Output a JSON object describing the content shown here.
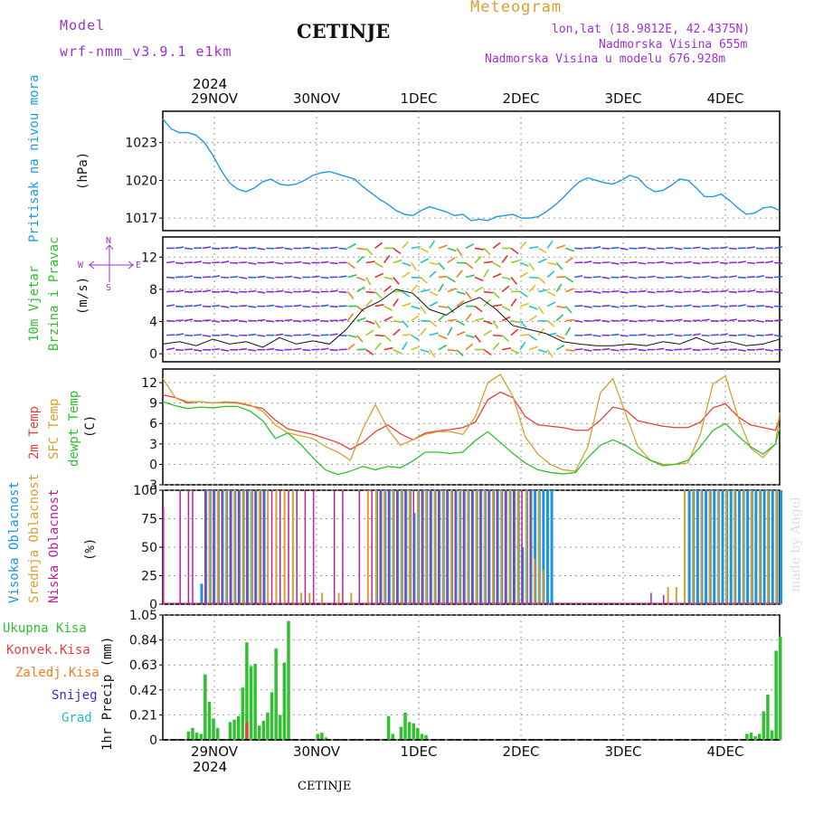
{
  "header": {
    "model_label": "Model",
    "model_name": "wrf-nmm_v3.9.1 e1km",
    "title": "CETINJE",
    "meteogram": "Meteogram",
    "lonlat": "lon,lat (18.9812E, 42.4375N)",
    "elev": "Nadmorska Visina 655m",
    "elev_model": "Nadmorska Visina u modelu 676.928m",
    "footer": "CETINJE",
    "watermark": "made by Angel",
    "year_top": "2024",
    "year_bottom": "2024"
  },
  "colors": {
    "pressure": "#1e9be0",
    "temp2m": "#e8403a",
    "sfc": "#d9a030",
    "dew": "#2ec02e",
    "high": "#1a95e0",
    "mid": "#d9a030",
    "low": "#c0209a",
    "precip": "#30c030",
    "convek": "#e84040",
    "zaledj": "#f08020",
    "snijeg": "#3030d0",
    "grad": "#20c0c0",
    "windlabel": "#a030d0"
  },
  "dates": [
    "29NOV",
    "30NOV",
    "1DEC",
    "2DEC",
    "3DEC",
    "4DEC"
  ],
  "panels": {
    "pressure": {
      "label": "Pritisak na nivou mora",
      "unit": "(hPa)",
      "ticks": [
        "1023",
        "1020",
        "1017"
      ]
    },
    "wind": {
      "label1": "10m Vjetar",
      "label2": "Brzina i Pravac",
      "unit": "(m/s)",
      "ticks": [
        "12",
        "8",
        "4",
        "0"
      ],
      "compass_n": "N",
      "compass_w": "W",
      "compass_e": "E",
      "compass_s": "S"
    },
    "temp": {
      "label_2m": "2m Temp",
      "label_sfc": "SFC Temp",
      "label_dew": "dewpt Temp",
      "unit": "(C)",
      "ticks": [
        "12",
        "9",
        "6",
        "3",
        "0",
        "-3"
      ]
    },
    "cloud": {
      "label_high": "Visoka Oblacnost",
      "label_mid": "Srednja Oblacnost",
      "label_low": "Niska Oblacnost",
      "unit": "(%)",
      "ticks": [
        "100",
        "75",
        "50",
        "25",
        "0"
      ]
    },
    "precip": {
      "ukupna": "Ukupna Kisa",
      "konvek": "Konvek.Kisa",
      "zaledj": "Zaledj.Kisa",
      "snijeg": "Snijeg",
      "grad": "Grad",
      "unit": "1hr Precip (mm)",
      "ticks": [
        "1.05",
        "0.84",
        "0.63",
        "0.42",
        "0.21",
        "0"
      ]
    }
  },
  "chart_data": [
    {
      "type": "line",
      "title": "Pritisak na nivou mora",
      "ylabel": "(hPa)",
      "x_unit": "hours from 2024-11-28 12:00 UTC",
      "ylim": [
        1016,
        1025.5
      ],
      "x": [
        0,
        2,
        4,
        6,
        8,
        10,
        12,
        14,
        16,
        18,
        20,
        22,
        24,
        26,
        28,
        30,
        32,
        34,
        36,
        38,
        40,
        42,
        44,
        46,
        48,
        50,
        52,
        54,
        56,
        58,
        60,
        62,
        64,
        66,
        68,
        70,
        72,
        74,
        76,
        78,
        80,
        82,
        84,
        86,
        88,
        90,
        92,
        94,
        96,
        98,
        100,
        102,
        104,
        106,
        108,
        110,
        112,
        114,
        116,
        118,
        120,
        122,
        124,
        126,
        128,
        130,
        132,
        134,
        136,
        138,
        140,
        142,
        144,
        146,
        148
      ],
      "series": [
        {
          "name": "Pritisak na nivou mora",
          "values": [
            1024.9,
            1024.1,
            1023.8,
            1023.8,
            1023.6,
            1023.0,
            1022.0,
            1020.8,
            1019.8,
            1019.3,
            1019.1,
            1019.4,
            1019.9,
            1020.1,
            1019.7,
            1019.6,
            1019.7,
            1020.0,
            1020.4,
            1020.6,
            1020.7,
            1020.5,
            1020.3,
            1020.1,
            1019.5,
            1019.0,
            1018.5,
            1018.1,
            1017.6,
            1017.3,
            1017.2,
            1017.6,
            1017.9,
            1017.7,
            1017.5,
            1017.2,
            1017.3,
            1016.8,
            1016.9,
            1016.8,
            1017.1,
            1017.2,
            1017.3,
            1017.0,
            1017.0,
            1017.1,
            1017.5,
            1018.0,
            1018.6,
            1019.3,
            1019.9,
            1020.2,
            1020.0,
            1019.8,
            1019.7,
            1020.0,
            1020.4,
            1020.2,
            1019.5,
            1019.1,
            1019.2,
            1019.6,
            1020.1,
            1020.0,
            1019.4,
            1018.7,
            1018.7,
            1018.9,
            1018.4,
            1017.8,
            1017.3,
            1017.4,
            1017.8,
            1017.9,
            1017.6
          ]
        }
      ]
    },
    {
      "type": "line",
      "title": "10m Vjetar Brzina i Pravac",
      "ylabel": "(m/s)",
      "x_unit": "hours from 2024-11-28 12:00 UTC",
      "ylim": [
        -1,
        14.5
      ],
      "x": [
        0,
        4,
        8,
        12,
        16,
        20,
        24,
        28,
        32,
        36,
        40,
        44,
        48,
        52,
        56,
        60,
        64,
        68,
        72,
        76,
        80,
        84,
        88,
        92,
        96,
        100,
        104,
        108,
        112,
        116,
        120,
        124,
        128,
        132,
        136,
        140,
        144,
        148
      ],
      "series": [
        {
          "name": "10m Vjetar",
          "values": [
            1.2,
            1.5,
            1.0,
            1.8,
            1.2,
            1.5,
            0.8,
            2.0,
            1.2,
            1.6,
            1.2,
            3.0,
            5.5,
            6.5,
            8.0,
            7.5,
            5.5,
            4.8,
            6.2,
            7.0,
            5.5,
            3.5,
            3.0,
            2.5,
            1.5,
            1.2,
            1.0,
            1.0,
            1.2,
            1.0,
            1.5,
            1.2,
            2.0,
            1.2,
            1.5,
            1.0,
            1.2,
            1.8
          ]
        }
      ]
    },
    {
      "type": "line",
      "title": "2m Temp / SFC Temp / dewpt Temp",
      "ylabel": "(C)",
      "x_unit": "hours from 2024-11-28 12:00 UTC",
      "ylim": [
        -3,
        14
      ],
      "x": [
        0,
        3,
        6,
        9,
        12,
        15,
        18,
        21,
        24,
        27,
        30,
        33,
        36,
        39,
        42,
        45,
        48,
        51,
        54,
        57,
        60,
        63,
        66,
        69,
        72,
        75,
        78,
        81,
        84,
        87,
        90,
        93,
        96,
        99,
        102,
        105,
        108,
        111,
        114,
        117,
        120,
        123,
        126,
        129,
        132,
        135,
        138,
        141,
        144,
        147,
        148
      ],
      "series": [
        {
          "name": "2m Temp",
          "values": [
            10.2,
            9.8,
            9.0,
            9.2,
            9.0,
            9.1,
            9.0,
            8.6,
            8.2,
            6.5,
            5.2,
            4.8,
            4.4,
            3.8,
            3.2,
            2.2,
            3.2,
            4.8,
            5.8,
            4.5,
            3.6,
            4.6,
            4.9,
            5.1,
            5.4,
            6.2,
            9.5,
            10.6,
            9.8,
            7.0,
            5.8,
            5.6,
            5.4,
            5.0,
            5.0,
            6.5,
            8.4,
            8.0,
            6.4,
            6.0,
            5.6,
            5.4,
            5.4,
            6.2,
            8.3,
            8.9,
            7.0,
            5.8,
            5.4,
            5.0,
            6.8
          ]
        },
        {
          "name": "SFC Temp",
          "values": [
            12.6,
            9.8,
            9.2,
            9.2,
            9.0,
            9.2,
            9.1,
            8.7,
            7.8,
            5.8,
            4.6,
            4.2,
            3.8,
            2.6,
            1.8,
            0.6,
            5.2,
            8.8,
            5.2,
            2.8,
            3.6,
            4.4,
            4.8,
            4.8,
            4.4,
            7.0,
            12.0,
            13.2,
            10.0,
            4.0,
            1.5,
            0.0,
            -0.8,
            -1.0,
            2.6,
            10.5,
            12.6,
            7.5,
            2.6,
            0.6,
            0.0,
            0.0,
            0.2,
            4.5,
            11.8,
            13.0,
            7.0,
            2.4,
            1.0,
            3.0,
            7.6
          ]
        },
        {
          "name": "dewpt Temp",
          "values": [
            9.2,
            8.6,
            8.2,
            8.4,
            8.3,
            8.5,
            8.5,
            7.8,
            6.4,
            3.8,
            4.6,
            3.0,
            1.0,
            -0.8,
            -1.5,
            -1.0,
            -0.3,
            -0.8,
            -0.3,
            -0.5,
            0.5,
            1.8,
            1.8,
            1.6,
            1.8,
            3.5,
            4.8,
            3.2,
            1.6,
            0.2,
            -0.8,
            -1.2,
            -1.4,
            -1.2,
            1.0,
            2.8,
            3.6,
            2.8,
            1.6,
            0.6,
            -0.2,
            0.0,
            0.6,
            2.6,
            5.0,
            6.0,
            4.2,
            2.6,
            1.5,
            3.0,
            5.4
          ]
        }
      ]
    },
    {
      "type": "bar",
      "title": "Visoka / Srednja / Niska Oblacnost",
      "ylabel": "(%)",
      "x_unit": "hours from 2024-11-28 12:00 UTC",
      "ylim": [
        0,
        100
      ],
      "series": [
        {
          "name": "Visoka Oblacnost",
          "x": [
            9,
            10,
            11,
            12,
            13,
            14,
            15,
            16,
            17,
            18,
            19,
            20,
            21,
            22,
            23,
            24,
            51,
            52,
            53,
            54,
            55,
            56,
            57,
            58,
            59,
            60,
            61,
            62,
            63,
            64,
            65,
            66,
            67,
            68,
            69,
            70,
            71,
            72,
            73,
            74,
            75,
            76,
            77,
            78,
            79,
            80,
            81,
            82,
            83,
            84,
            85,
            86,
            87,
            88,
            89,
            90,
            91,
            92,
            93,
            126,
            127,
            128,
            129,
            130,
            131,
            132,
            133,
            134,
            135,
            136,
            137,
            138,
            139,
            140,
            141,
            142,
            143,
            144,
            145,
            146,
            147,
            148
          ],
          "values": [
            18,
            100,
            100,
            100,
            100,
            100,
            100,
            100,
            100,
            100,
            100,
            100,
            100,
            100,
            100,
            100,
            100,
            100,
            100,
            100,
            100,
            100,
            100,
            100,
            100,
            80,
            100,
            100,
            100,
            100,
            100,
            100,
            100,
            100,
            100,
            100,
            100,
            100,
            100,
            100,
            100,
            100,
            100,
            100,
            100,
            100,
            100,
            100,
            100,
            100,
            100,
            50,
            100,
            100,
            100,
            100,
            100,
            100,
            100,
            100,
            100,
            100,
            100,
            100,
            100,
            100,
            100,
            100,
            100,
            100,
            100,
            100,
            100,
            100,
            100,
            100,
            100,
            100,
            100,
            100,
            100,
            100
          ]
        },
        {
          "name": "Srednja Oblacnost",
          "x": [
            11,
            13,
            15,
            17,
            19,
            21,
            23,
            25,
            27,
            29,
            31,
            33,
            35,
            38,
            42,
            45,
            49,
            51,
            53,
            55,
            57,
            59,
            61,
            63,
            65,
            67,
            69,
            71,
            73,
            75,
            77,
            79,
            81,
            83,
            85,
            87,
            89,
            90,
            91,
            121,
            123,
            125,
            127,
            129,
            131,
            133,
            135,
            137,
            139,
            141,
            143,
            145,
            147
          ],
          "values": [
            100,
            100,
            100,
            100,
            100,
            100,
            100,
            100,
            100,
            100,
            100,
            10,
            10,
            10,
            10,
            10,
            100,
            100,
            100,
            100,
            100,
            100,
            100,
            100,
            100,
            100,
            100,
            100,
            100,
            100,
            100,
            100,
            100,
            100,
            100,
            100,
            40,
            100,
            30,
            15,
            15,
            100,
            100,
            100,
            100,
            100,
            100,
            100,
            100,
            100,
            100,
            100,
            100
          ]
        },
        {
          "name": "Niska Oblacnost",
          "x": [
            0,
            4,
            6,
            7,
            10,
            12,
            14,
            16,
            18,
            20,
            22,
            24,
            26,
            28,
            30,
            32,
            34,
            36,
            41,
            43,
            47,
            50,
            52,
            54,
            56,
            58,
            60,
            62,
            64,
            66,
            68,
            70,
            72,
            74,
            76,
            78,
            80,
            82,
            84,
            86,
            88,
            117,
            120
          ],
          "values": [
            85,
            100,
            100,
            100,
            100,
            100,
            100,
            100,
            100,
            100,
            100,
            100,
            100,
            100,
            100,
            100,
            100,
            100,
            100,
            100,
            100,
            100,
            100,
            100,
            100,
            100,
            100,
            100,
            100,
            100,
            100,
            100,
            100,
            100,
            100,
            100,
            100,
            100,
            100,
            100,
            100,
            10,
            8
          ]
        }
      ]
    },
    {
      "type": "bar",
      "title": "1hr Precip",
      "ylabel": "1hr Precip (mm)",
      "x_unit": "hours from 2024-11-28 12:00 UTC",
      "ylim": [
        0,
        1.05
      ],
      "series": [
        {
          "name": "Ukupna Kisa",
          "x": [
            6,
            7,
            8,
            9,
            10,
            11,
            12,
            13,
            16,
            17,
            18,
            19,
            20,
            21,
            22,
            23,
            24,
            25,
            26,
            27,
            28,
            29,
            30,
            37,
            38,
            39,
            54,
            55,
            57,
            58,
            59,
            60,
            61,
            62,
            63,
            140,
            141,
            142,
            143,
            144,
            145,
            146,
            147,
            148
          ],
          "values": [
            0.07,
            0.1,
            0.06,
            0.05,
            0.55,
            0.32,
            0.18,
            0.1,
            0.15,
            0.17,
            0.2,
            0.44,
            0.82,
            0.62,
            0.64,
            0.12,
            0.16,
            0.23,
            0.4,
            0.77,
            0.21,
            0.65,
            1.0,
            0.05,
            0.06,
            0.02,
            0.2,
            0.05,
            0.11,
            0.23,
            0.15,
            0.14,
            0.1,
            0.05,
            0.04,
            0.05,
            0.06,
            0.03,
            0.05,
            0.24,
            0.38,
            0.08,
            0.75,
            0.87
          ]
        },
        {
          "name": "Konvek.Kisa",
          "x": [
            20
          ],
          "values": [
            0.15
          ]
        }
      ]
    }
  ]
}
